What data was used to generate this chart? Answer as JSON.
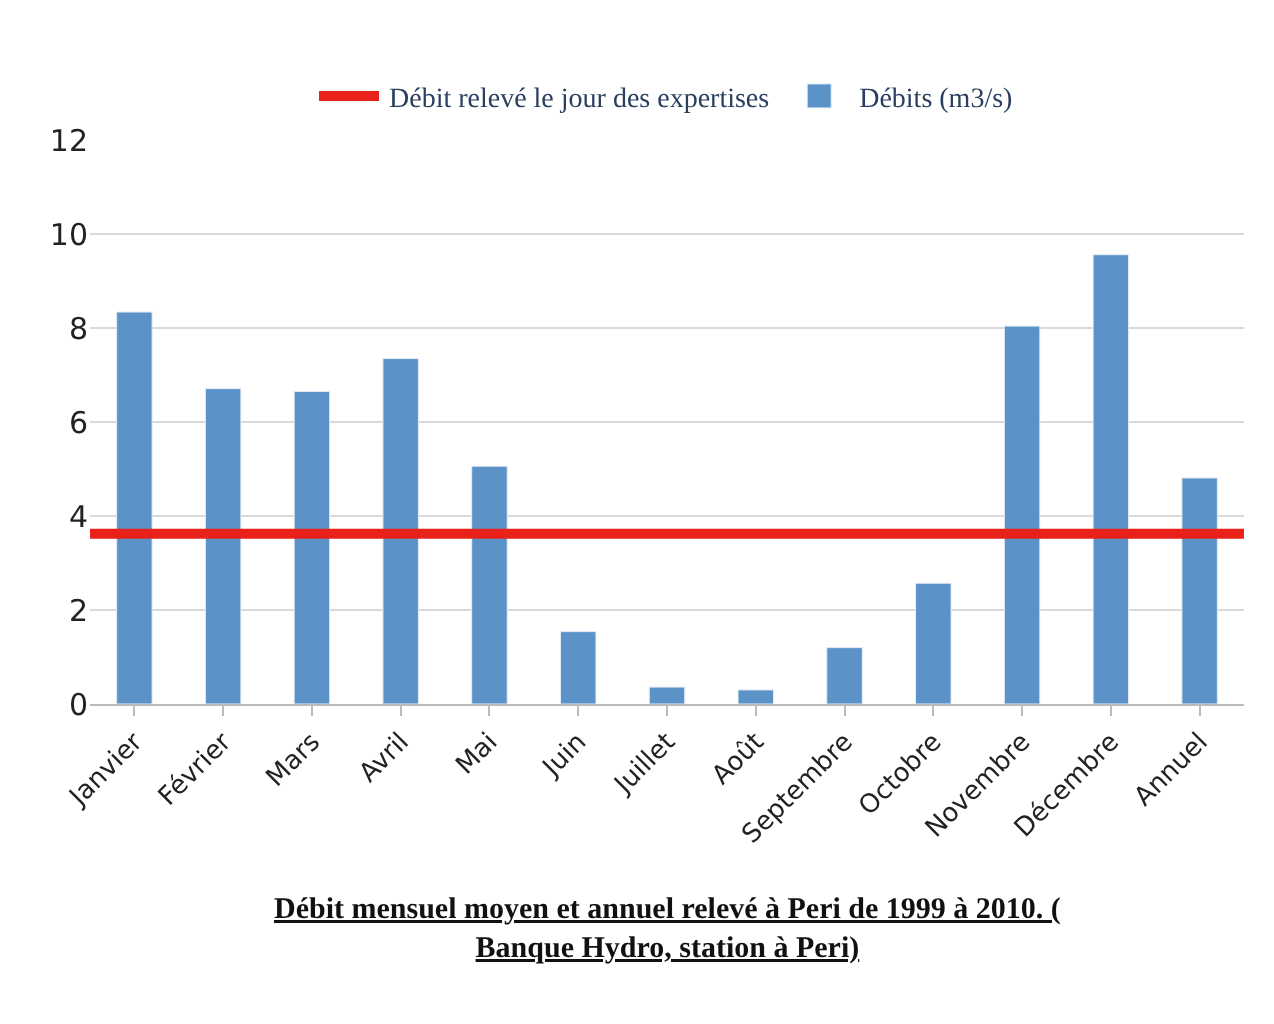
{
  "chart_data": {
    "type": "bar",
    "categories": [
      "Janvier",
      "Février",
      "Mars",
      "Avril",
      "Mai",
      "Juin",
      "Juillet",
      "Août",
      "Septembre",
      "Octobre",
      "Novembre",
      "Décembre",
      "Annuel"
    ],
    "series": [
      {
        "name": "Débits (m3/s)",
        "color": "#5b93c9",
        "values": [
          8.34,
          6.71,
          6.65,
          7.35,
          5.06,
          1.54,
          0.36,
          0.3,
          1.2,
          2.57,
          8.04,
          9.56,
          4.81
        ]
      }
    ],
    "ylim": [
      0,
      12
    ],
    "yticks": [
      0,
      2,
      4,
      6,
      8,
      10,
      12
    ],
    "grid": "y",
    "legend": "top",
    "ref_lines": [
      {
        "axis": "y",
        "value": 3.62,
        "label": "Débit relevé le jour des expertises",
        "color": "#e8221a",
        "line_style": "solid"
      }
    ],
    "annotations": [
      "Débit mensuel moyen et annuel relevé à Peri de 1999 à 2010. (Banque Hydro, station à Peri)"
    ]
  }
}
